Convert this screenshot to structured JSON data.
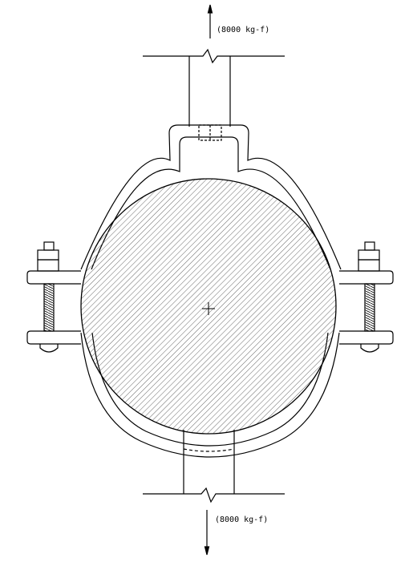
{
  "diagram": {
    "load_top": "(8000 kg-f)",
    "load_bottom": "(8000 kg-f)"
  },
  "colors": {
    "line": "#000000",
    "hatch": "#555555",
    "background": "#ffffff"
  }
}
